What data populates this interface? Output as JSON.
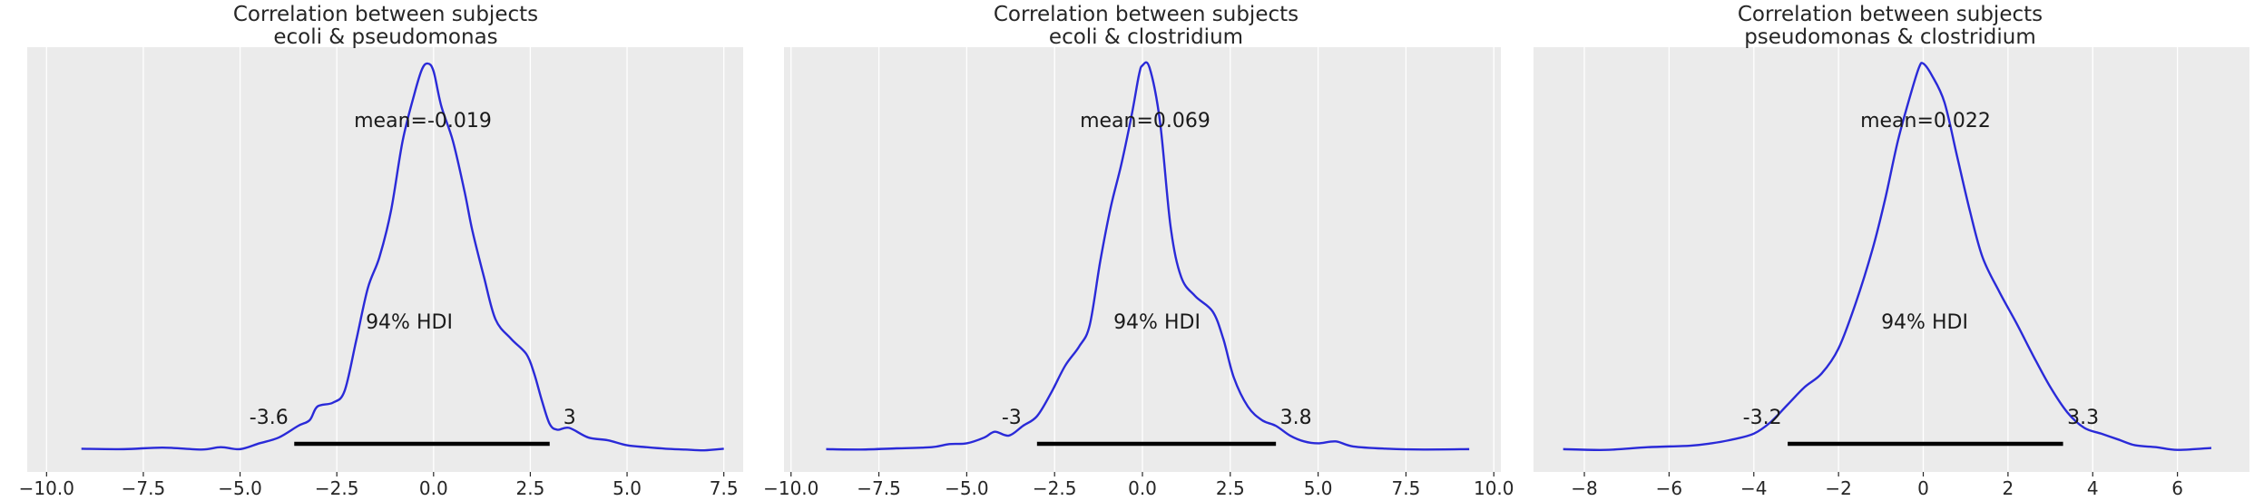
{
  "chart_data": [
    {
      "type": "area",
      "title": [
        "Correlation between subjects",
        "ecoli & pseudomonas"
      ],
      "xlim": [
        -10.5,
        8.0
      ],
      "xticks": [
        -10.0,
        -7.5,
        -5.0,
        -2.5,
        0.0,
        2.5,
        5.0,
        7.5
      ],
      "tick_labels": [
        "−10.0",
        "−7.5",
        "−5.0",
        "−2.5",
        "0.0",
        "2.5",
        "5.0",
        "7.5"
      ],
      "mean_label": "mean=-0.019",
      "hdi_label": "94% HDI",
      "hdi": {
        "low": -3.6,
        "high": 3.0,
        "low_label": "-3.6",
        "high_label": "3"
      },
      "series": [
        {
          "color": "#2a2ad8",
          "x": [
            -9.1,
            -8.0,
            -7.0,
            -6.0,
            -5.5,
            -5.0,
            -4.5,
            -4.0,
            -3.5,
            -3.2,
            -3.0,
            -2.6,
            -2.3,
            -2.0,
            -1.7,
            -1.4,
            -1.1,
            -0.8,
            -0.5,
            -0.3,
            -0.15,
            0.0,
            0.2,
            0.5,
            0.8,
            1.0,
            1.3,
            1.6,
            2.0,
            2.4,
            2.6,
            2.8,
            3.0,
            3.2,
            3.5,
            4.0,
            4.5,
            5.0,
            5.5,
            6.0,
            6.5,
            7.0,
            7.5
          ],
          "y": [
            0.006,
            0.005,
            0.009,
            0.004,
            0.01,
            0.005,
            0.02,
            0.035,
            0.065,
            0.08,
            0.115,
            0.125,
            0.155,
            0.285,
            0.42,
            0.5,
            0.62,
            0.8,
            0.92,
            0.985,
            1.0,
            0.98,
            0.89,
            0.8,
            0.67,
            0.57,
            0.45,
            0.34,
            0.29,
            0.25,
            0.2,
            0.13,
            0.07,
            0.055,
            0.06,
            0.035,
            0.028,
            0.015,
            0.01,
            0.006,
            0.004,
            0.002,
            0.006
          ]
        }
      ]
    },
    {
      "type": "area",
      "title": [
        "Correlation between subjects",
        "ecoli & clostridium"
      ],
      "xlim": [
        -10.2,
        10.2
      ],
      "xticks": [
        -10.0,
        -7.5,
        -5.0,
        -2.5,
        0.0,
        2.5,
        5.0,
        7.5,
        10.0
      ],
      "tick_labels": [
        "−10.0",
        "−7.5",
        "−5.0",
        "−2.5",
        "0.0",
        "2.5",
        "5.0",
        "7.5",
        "10.0"
      ],
      "mean_label": "mean=0.069",
      "hdi_label": "94% HDI",
      "hdi": {
        "low": -3.0,
        "high": 3.8,
        "low_label": "-3",
        "high_label": "3.8"
      },
      "series": [
        {
          "color": "#2a2ad8",
          "x": [
            -9.0,
            -8.0,
            -7.0,
            -6.0,
            -5.5,
            -5.0,
            -4.5,
            -4.2,
            -3.8,
            -3.4,
            -3.0,
            -2.6,
            -2.2,
            -1.8,
            -1.5,
            -1.2,
            -0.9,
            -0.6,
            -0.3,
            -0.1,
            0.0,
            0.2,
            0.5,
            0.8,
            1.1,
            1.5,
            2.0,
            2.3,
            2.6,
            3.0,
            3.4,
            3.8,
            4.2,
            4.6,
            5.0,
            5.5,
            6.0,
            7.0,
            8.0,
            9.3
          ],
          "y": [
            0.005,
            0.004,
            0.007,
            0.01,
            0.018,
            0.02,
            0.035,
            0.05,
            0.04,
            0.065,
            0.09,
            0.15,
            0.22,
            0.27,
            0.325,
            0.49,
            0.63,
            0.74,
            0.87,
            0.97,
            0.995,
            0.99,
            0.85,
            0.58,
            0.45,
            0.4,
            0.36,
            0.29,
            0.19,
            0.115,
            0.08,
            0.065,
            0.04,
            0.025,
            0.02,
            0.025,
            0.012,
            0.006,
            0.004,
            0.005
          ]
        }
      ]
    },
    {
      "type": "area",
      "title": [
        "Correlation between subjects",
        "pseudomonas & clostridium"
      ],
      "xlim": [
        -9.2,
        7.7
      ],
      "xticks": [
        -8,
        -6,
        -4,
        -2,
        0,
        2,
        4,
        6
      ],
      "tick_labels": [
        "−8",
        "−6",
        "−4",
        "−2",
        "0",
        "2",
        "4",
        "6"
      ],
      "mean_label": "mean=0.022",
      "hdi_label": "94% HDI",
      "hdi": {
        "low": -3.2,
        "high": 3.3,
        "low_label": "-3.2",
        "high_label": "3.3"
      },
      "series": [
        {
          "color": "#2a2ad8",
          "x": [
            -8.5,
            -7.5,
            -6.5,
            -5.5,
            -5.0,
            -4.5,
            -4.0,
            -3.6,
            -3.2,
            -2.8,
            -2.4,
            -2.0,
            -1.6,
            -1.2,
            -0.9,
            -0.6,
            -0.3,
            -0.1,
            0.0,
            0.2,
            0.5,
            0.8,
            1.1,
            1.4,
            1.8,
            2.2,
            2.6,
            3.0,
            3.4,
            3.8,
            4.2,
            4.6,
            5.0,
            5.5,
            6.0,
            6.8
          ],
          "y": [
            0.005,
            0.003,
            0.01,
            0.014,
            0.02,
            0.03,
            0.045,
            0.075,
            0.12,
            0.165,
            0.2,
            0.265,
            0.38,
            0.52,
            0.65,
            0.8,
            0.92,
            0.99,
            1.0,
            0.97,
            0.9,
            0.76,
            0.62,
            0.5,
            0.41,
            0.33,
            0.245,
            0.165,
            0.1,
            0.06,
            0.045,
            0.03,
            0.015,
            0.01,
            0.003,
            0.008
          ]
        }
      ]
    }
  ]
}
